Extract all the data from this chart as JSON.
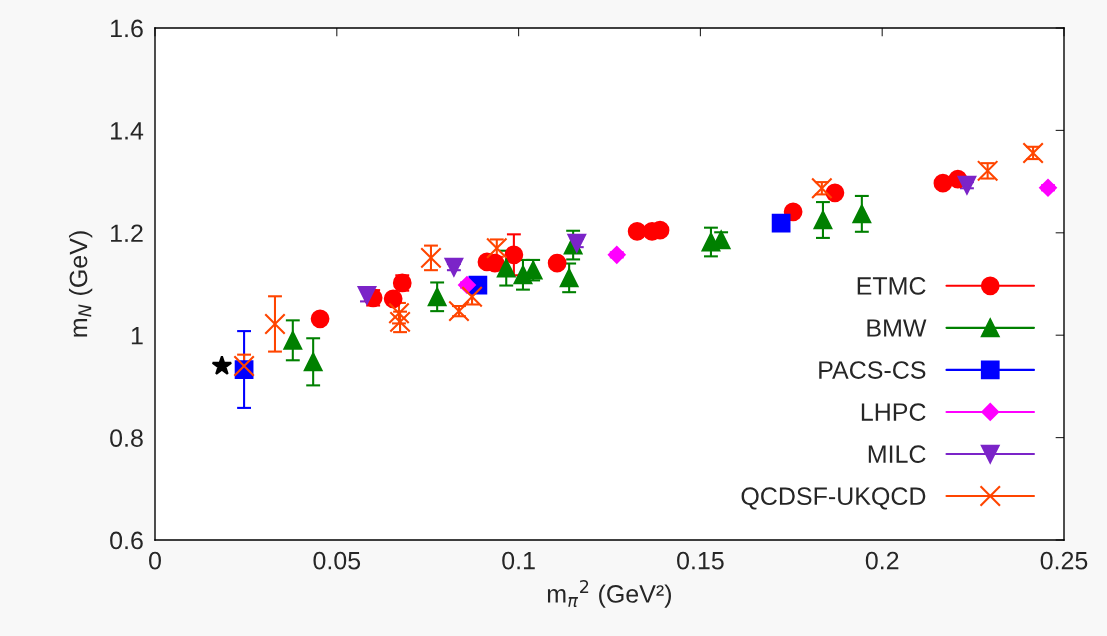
{
  "chart_data": {
    "type": "scatter",
    "xlabel": "m$_{π}$$^{2}$ (GeV²)",
    "ylabel": "m$_{N}$ (GeV)",
    "xlim": [
      0,
      0.25
    ],
    "ylim": [
      0.6,
      1.6
    ],
    "xticks": [
      0,
      0.05,
      0.1,
      0.15,
      0.2,
      0.25
    ],
    "yticks": [
      0.6,
      0.8,
      1,
      1.2,
      1.4,
      1.6
    ],
    "grid": false,
    "legend": "bottom right",
    "series": [
      {
        "name": "ETMC",
        "color": "#ff0000",
        "marker": "circle",
        "x": [
          0.0454,
          0.06,
          0.0655,
          0.068,
          0.0913,
          0.0935,
          0.0987,
          0.1106,
          0.1326,
          0.1367,
          0.1389,
          0.1755,
          0.187,
          0.2167,
          0.2208
        ],
        "values": [
          1.032,
          1.073,
          1.071,
          1.102,
          1.143,
          1.141,
          1.157,
          1.141,
          1.203,
          1.203,
          1.205,
          1.241,
          1.278,
          1.297,
          1.305
        ],
        "errors": [
          0.008,
          0.015,
          0.008,
          0.015,
          0.008,
          0.008,
          0.04,
          0.008,
          0.008,
          0.008,
          0.008,
          0.008,
          0.008,
          0.008,
          0.008
        ]
      },
      {
        "name": "BMW",
        "color": "#008000",
        "marker": "triangle",
        "x": [
          0.0379,
          0.0435,
          0.0776,
          0.0966,
          0.1012,
          0.104,
          0.1139,
          0.115,
          0.1529,
          0.1557,
          0.1837,
          0.1944
        ],
        "values": [
          0.99,
          0.948,
          1.075,
          1.131,
          1.118,
          1.127,
          1.112,
          1.176,
          1.182,
          1.186,
          1.225,
          1.237
        ],
        "errors": [
          0.039,
          0.046,
          0.028,
          0.034,
          0.029,
          0.02,
          0.028,
          0.028,
          0.028,
          0.015,
          0.035,
          0.035
        ]
      },
      {
        "name": "PACS-CS",
        "color": "#0000ff",
        "marker": "square",
        "x": [
          0.0245,
          0.0888,
          0.1722
        ],
        "values": [
          0.933,
          1.098,
          1.219
        ],
        "errors": [
          0.075,
          0.015,
          0.01
        ]
      },
      {
        "name": "LHPC",
        "color": "#ff00ff",
        "marker": "diamond",
        "x": [
          0.0858,
          0.127,
          0.2456
        ],
        "values": [
          1.098,
          1.157,
          1.288
        ],
        "errors": [
          0.005,
          0.005,
          0.005
        ]
      },
      {
        "name": "MILC",
        "color": "#7b24c8",
        "marker": "triangle_down",
        "x": [
          0.0583,
          0.0822,
          0.116,
          0.2233
        ],
        "values": [
          1.078,
          1.133,
          1.18,
          1.293
        ],
        "errors": [
          0.012,
          0.006,
          0.008,
          0.006
        ]
      },
      {
        "name": "QCDSF-UKQCD",
        "color": "#ff4500",
        "marker": "cross",
        "x": [
          0.0245,
          0.033,
          0.0671,
          0.0674,
          0.0759,
          0.0836,
          0.0872,
          0.094,
          0.1834,
          0.229,
          0.2415
        ],
        "values": [
          0.94,
          1.022,
          1.043,
          1.026,
          1.151,
          1.047,
          1.075,
          1.17,
          1.287,
          1.321,
          1.356
        ],
        "errors": [
          0.022,
          0.054,
          0.02,
          0.02,
          0.024,
          0.01,
          0.015,
          0.017,
          0.012,
          0.015,
          0.012
        ]
      },
      {
        "color": "#000000",
        "marker": "star",
        "x": [
          0.0184
        ],
        "values": [
          0.94
        ]
      }
    ]
  }
}
